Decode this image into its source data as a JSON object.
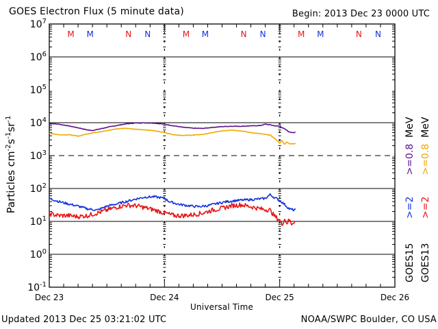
{
  "chart_data": {
    "type": "line",
    "title": "GOES Electron Flux (5 minute data)",
    "begin_label": "Begin: 2013 Dec 23 0000 UTC",
    "xlabel": "Universal Time",
    "ylabel": "Particles cm⁻²s⁻¹sr⁻¹",
    "y_scale": "log",
    "ylim": [
      0.1,
      10000000
    ],
    "y_ticks": [
      {
        "exp": "7",
        "value": 10000000
      },
      {
        "exp": "6",
        "value": 1000000
      },
      {
        "exp": "5",
        "value": 100000
      },
      {
        "exp": "4",
        "value": 10000
      },
      {
        "exp": "3",
        "value": 1000
      },
      {
        "exp": "2",
        "value": 100
      },
      {
        "exp": "1",
        "value": 10
      },
      {
        "exp": "0",
        "value": 1
      },
      {
        "exp": "-1",
        "value": 0.1
      }
    ],
    "x_unit": "hours since 2013 Dec 23 00:00 UTC",
    "xlim": [
      0,
      72
    ],
    "x_ticks": [
      {
        "label": "Dec 23",
        "hour": 0
      },
      {
        "label": "Dec 24",
        "hour": 24
      },
      {
        "label": "Dec 25",
        "hour": 48
      },
      {
        "label": "Dec 26",
        "hour": 72
      }
    ],
    "grid": {
      "solid_levels": [
        1000000,
        10000,
        100,
        10,
        1
      ],
      "dashed_levels": [
        1000
      ]
    },
    "markers": [
      {
        "label": "M",
        "hour": 4.5,
        "satellite": "GOES13"
      },
      {
        "label": "M",
        "hour": 8.5,
        "satellite": "GOES15"
      },
      {
        "label": "N",
        "hour": 16.5,
        "satellite": "GOES13"
      },
      {
        "label": "N",
        "hour": 20.5,
        "satellite": "GOES15"
      },
      {
        "label": "M",
        "hour": 28.5,
        "satellite": "GOES13"
      },
      {
        "label": "M",
        "hour": 32.5,
        "satellite": "GOES15"
      },
      {
        "label": "N",
        "hour": 40.5,
        "satellite": "GOES13"
      },
      {
        "label": "N",
        "hour": 44.5,
        "satellite": "GOES15"
      },
      {
        "label": "M",
        "hour": 52.5,
        "satellite": "GOES13"
      },
      {
        "label": "M",
        "hour": 56.5,
        "satellite": "GOES15"
      },
      {
        "label": "N",
        "hour": 64.5,
        "satellite": "GOES13"
      },
      {
        "label": "N",
        "hour": 68.5,
        "satellite": "GOES15"
      }
    ],
    "series": [
      {
        "name": "GOES15 >=0.8 MeV",
        "color": "#5a108c",
        "points": [
          [
            0,
            9500
          ],
          [
            2,
            9000
          ],
          [
            4,
            8000
          ],
          [
            6,
            7000
          ],
          [
            8,
            6000
          ],
          [
            9,
            5800
          ],
          [
            10,
            6200
          ],
          [
            12,
            7200
          ],
          [
            14,
            8200
          ],
          [
            16,
            9200
          ],
          [
            18,
            9800
          ],
          [
            20,
            9900
          ],
          [
            22,
            9700
          ],
          [
            24,
            9000
          ],
          [
            26,
            8000
          ],
          [
            28,
            7200
          ],
          [
            30,
            6800
          ],
          [
            32,
            6700
          ],
          [
            34,
            7200
          ],
          [
            36,
            7600
          ],
          [
            38,
            7800
          ],
          [
            40,
            7800
          ],
          [
            42,
            8000
          ],
          [
            44,
            8200
          ],
          [
            45,
            9000
          ],
          [
            46,
            8600
          ],
          [
            47,
            8000
          ],
          [
            48,
            7800
          ],
          [
            49,
            6500
          ],
          [
            50,
            5200
          ],
          [
            51,
            5000
          ],
          [
            51.3,
            5100
          ]
        ]
      },
      {
        "name": "GOES13 >=0.8 MeV",
        "color": "#f0a800",
        "points": [
          [
            0,
            4800
          ],
          [
            2,
            4300
          ],
          [
            4,
            4300
          ],
          [
            6,
            3900
          ],
          [
            8,
            4600
          ],
          [
            10,
            5200
          ],
          [
            12,
            5700
          ],
          [
            14,
            6500
          ],
          [
            16,
            6800
          ],
          [
            18,
            6300
          ],
          [
            20,
            6000
          ],
          [
            22,
            5700
          ],
          [
            24,
            5000
          ],
          [
            26,
            4300
          ],
          [
            28,
            4100
          ],
          [
            30,
            4200
          ],
          [
            32,
            4400
          ],
          [
            34,
            5000
          ],
          [
            36,
            5600
          ],
          [
            38,
            6000
          ],
          [
            40,
            5600
          ],
          [
            42,
            5000
          ],
          [
            44,
            4600
          ],
          [
            46,
            4200
          ],
          [
            47,
            3300
          ],
          [
            48,
            2400
          ],
          [
            48.5,
            2800
          ],
          [
            49,
            2200
          ],
          [
            49.5,
            2600
          ],
          [
            50,
            2300
          ],
          [
            51,
            2300
          ],
          [
            51.3,
            2300
          ]
        ]
      },
      {
        "name": "GOES15 >=2 MeV",
        "color": "#1030e0",
        "points": [
          [
            0,
            50
          ],
          [
            2,
            40
          ],
          [
            4,
            34
          ],
          [
            6,
            29
          ],
          [
            8,
            24
          ],
          [
            10,
            22
          ],
          [
            12,
            29
          ],
          [
            14,
            34
          ],
          [
            16,
            40
          ],
          [
            18,
            48
          ],
          [
            20,
            55
          ],
          [
            22,
            56
          ],
          [
            24,
            50
          ],
          [
            25,
            40
          ],
          [
            27,
            33
          ],
          [
            29,
            30
          ],
          [
            31,
            28
          ],
          [
            33,
            30
          ],
          [
            35,
            35
          ],
          [
            37,
            40
          ],
          [
            39,
            43
          ],
          [
            41,
            45
          ],
          [
            43,
            47
          ],
          [
            45,
            50
          ],
          [
            46,
            65
          ],
          [
            47,
            52
          ],
          [
            48,
            44
          ],
          [
            49,
            33
          ],
          [
            50,
            24
          ],
          [
            51,
            22
          ],
          [
            51.3,
            23
          ]
        ]
      },
      {
        "name": "GOES13 >=2 MeV",
        "color": "#e81414",
        "points": [
          [
            0,
            17
          ],
          [
            2,
            15
          ],
          [
            4,
            15
          ],
          [
            6,
            14
          ],
          [
            8,
            15
          ],
          [
            10,
            18
          ],
          [
            12,
            22
          ],
          [
            14,
            27
          ],
          [
            16,
            31
          ],
          [
            18,
            30
          ],
          [
            20,
            26
          ],
          [
            22,
            22
          ],
          [
            24,
            18
          ],
          [
            26,
            15
          ],
          [
            28,
            15
          ],
          [
            30,
            16
          ],
          [
            32,
            18
          ],
          [
            34,
            22
          ],
          [
            36,
            25
          ],
          [
            38,
            30
          ],
          [
            40,
            32
          ],
          [
            42,
            28
          ],
          [
            44,
            24
          ],
          [
            46,
            22
          ],
          [
            47,
            14
          ],
          [
            48,
            11
          ],
          [
            48.5,
            8
          ],
          [
            49,
            12
          ],
          [
            49.5,
            9
          ],
          [
            50,
            11
          ],
          [
            50.5,
            8.5
          ],
          [
            51,
            10
          ],
          [
            51.3,
            10
          ]
        ]
      }
    ],
    "legend": {
      "placement": "right",
      "entries": [
        {
          "text": "GOES15",
          "color": "#000000"
        },
        {
          "text": ">=2",
          "color": "#1030e0"
        },
        {
          "text": ">=0.8",
          "color": "#5a108c"
        },
        {
          "text": "MeV",
          "color": "#000000"
        },
        {
          "text": "GOES13",
          "color": "#000000"
        },
        {
          "text": ">=2",
          "color": "#e81414"
        },
        {
          "text": ">=0.8",
          "color": "#f0a800"
        },
        {
          "text": "MeV",
          "color": "#000000"
        }
      ]
    },
    "marker_colors": {
      "GOES13": "#e81414",
      "GOES15": "#1030e0"
    }
  },
  "footer": {
    "updated": "Updated 2013 Dec 25 03:21:02 UTC",
    "credit": "NOAA/SWPC Boulder, CO USA"
  },
  "ylabel_parts": {
    "main": "Particles cm",
    "e1": "-2",
    "s": "s",
    "e2": "-1",
    "sr": "sr",
    "e3": "-1"
  }
}
